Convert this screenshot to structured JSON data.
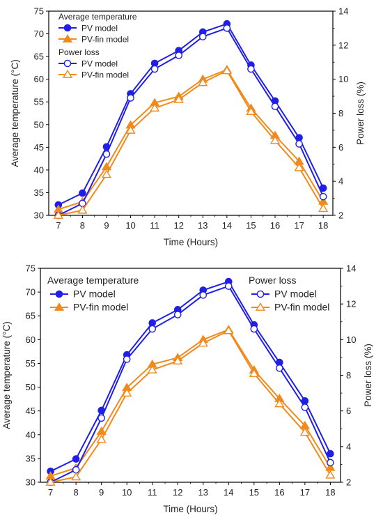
{
  "colors": {
    "pv": "#1f1fe6",
    "fin": "#f08a1c",
    "axis": "#000000"
  },
  "chart_data": [
    {
      "type": "line",
      "title": "",
      "xlabel": "Time (Hours)",
      "ylabel": "Average temperature (°C)",
      "y2label": "Power loss (%)",
      "x": [
        7,
        8,
        9,
        10,
        11,
        12,
        13,
        14,
        15,
        16,
        17,
        18
      ],
      "xlim": [
        6.6,
        18.4
      ],
      "ylim": [
        30,
        75
      ],
      "y2lim": [
        2,
        14
      ],
      "yticks": [
        30,
        35,
        40,
        45,
        50,
        55,
        60,
        65,
        70,
        75
      ],
      "y2ticks": [
        2,
        4,
        6,
        8,
        10,
        12,
        14
      ],
      "legend": {
        "placement": "top-left",
        "group1_title": "Average temperature",
        "group2_title": "Power loss"
      },
      "series": [
        {
          "name": "PV model",
          "group": "temp",
          "axis": "left",
          "marker": "filled-circle",
          "color": "pv",
          "values": [
            32.3,
            34.9,
            45.1,
            56.8,
            63.5,
            66.3,
            70.4,
            72.2,
            63.1,
            55.2,
            47.1,
            36.0
          ]
        },
        {
          "name": "PV-fin model",
          "group": "temp",
          "axis": "left",
          "marker": "filled-triangle",
          "color": "fin",
          "values": [
            31.3,
            33.0,
            40.7,
            49.9,
            54.8,
            56.2,
            60.0,
            62.1,
            53.6,
            47.6,
            41.9,
            33.1
          ]
        },
        {
          "name": "PV model",
          "group": "loss",
          "axis": "right",
          "marker": "open-circle",
          "color": "pv",
          "values": [
            2.0,
            2.7,
            5.6,
            8.9,
            10.6,
            11.4,
            12.5,
            13.0,
            10.6,
            8.4,
            6.2,
            3.1
          ]
        },
        {
          "name": "PV-fin model",
          "group": "loss",
          "axis": "right",
          "marker": "open-triangle",
          "color": "fin",
          "values": [
            2.0,
            2.3,
            4.4,
            7.0,
            8.3,
            8.8,
            9.8,
            10.5,
            8.1,
            6.4,
            4.8,
            2.4
          ]
        }
      ]
    },
    {
      "type": "line",
      "title": "",
      "xlabel": "Time (Hours)",
      "ylabel": "Average temperature (°C)",
      "y2label": "Power loss (%)",
      "x": [
        7,
        8,
        9,
        10,
        11,
        12,
        13,
        14,
        15,
        16,
        17,
        18
      ],
      "xlim": [
        6.6,
        18.4
      ],
      "ylim": [
        30,
        75
      ],
      "y2lim": [
        2,
        14
      ],
      "yticks": [
        30,
        35,
        40,
        45,
        50,
        55,
        60,
        65,
        70,
        75
      ],
      "y2ticks": [
        2,
        4,
        6,
        8,
        10,
        12,
        14
      ],
      "legend": {
        "placement": "top-left and top-right",
        "group1_title": "Average temperature",
        "group2_title": "Power loss"
      },
      "series": [
        {
          "name": "PV model",
          "group": "temp",
          "axis": "left",
          "marker": "filled-circle",
          "color": "pv",
          "values": [
            32.3,
            34.9,
            45.1,
            56.8,
            63.5,
            66.3,
            70.4,
            72.2,
            63.1,
            55.2,
            47.1,
            36.0
          ]
        },
        {
          "name": "PV-fin model",
          "group": "temp",
          "axis": "left",
          "marker": "filled-triangle",
          "color": "fin",
          "values": [
            31.3,
            33.0,
            40.7,
            49.9,
            54.8,
            56.2,
            60.0,
            62.1,
            53.6,
            47.6,
            41.9,
            33.1
          ]
        },
        {
          "name": "PV model",
          "group": "loss",
          "axis": "right",
          "marker": "open-circle",
          "color": "pv",
          "values": [
            2.0,
            2.7,
            5.6,
            8.9,
            10.6,
            11.4,
            12.5,
            13.0,
            10.6,
            8.4,
            6.2,
            3.1
          ]
        },
        {
          "name": "PV-fin model",
          "group": "loss",
          "axis": "right",
          "marker": "open-triangle",
          "color": "fin",
          "values": [
            2.0,
            2.3,
            4.4,
            7.0,
            8.3,
            8.8,
            9.8,
            10.5,
            8.1,
            6.4,
            4.8,
            2.4
          ]
        }
      ]
    }
  ]
}
